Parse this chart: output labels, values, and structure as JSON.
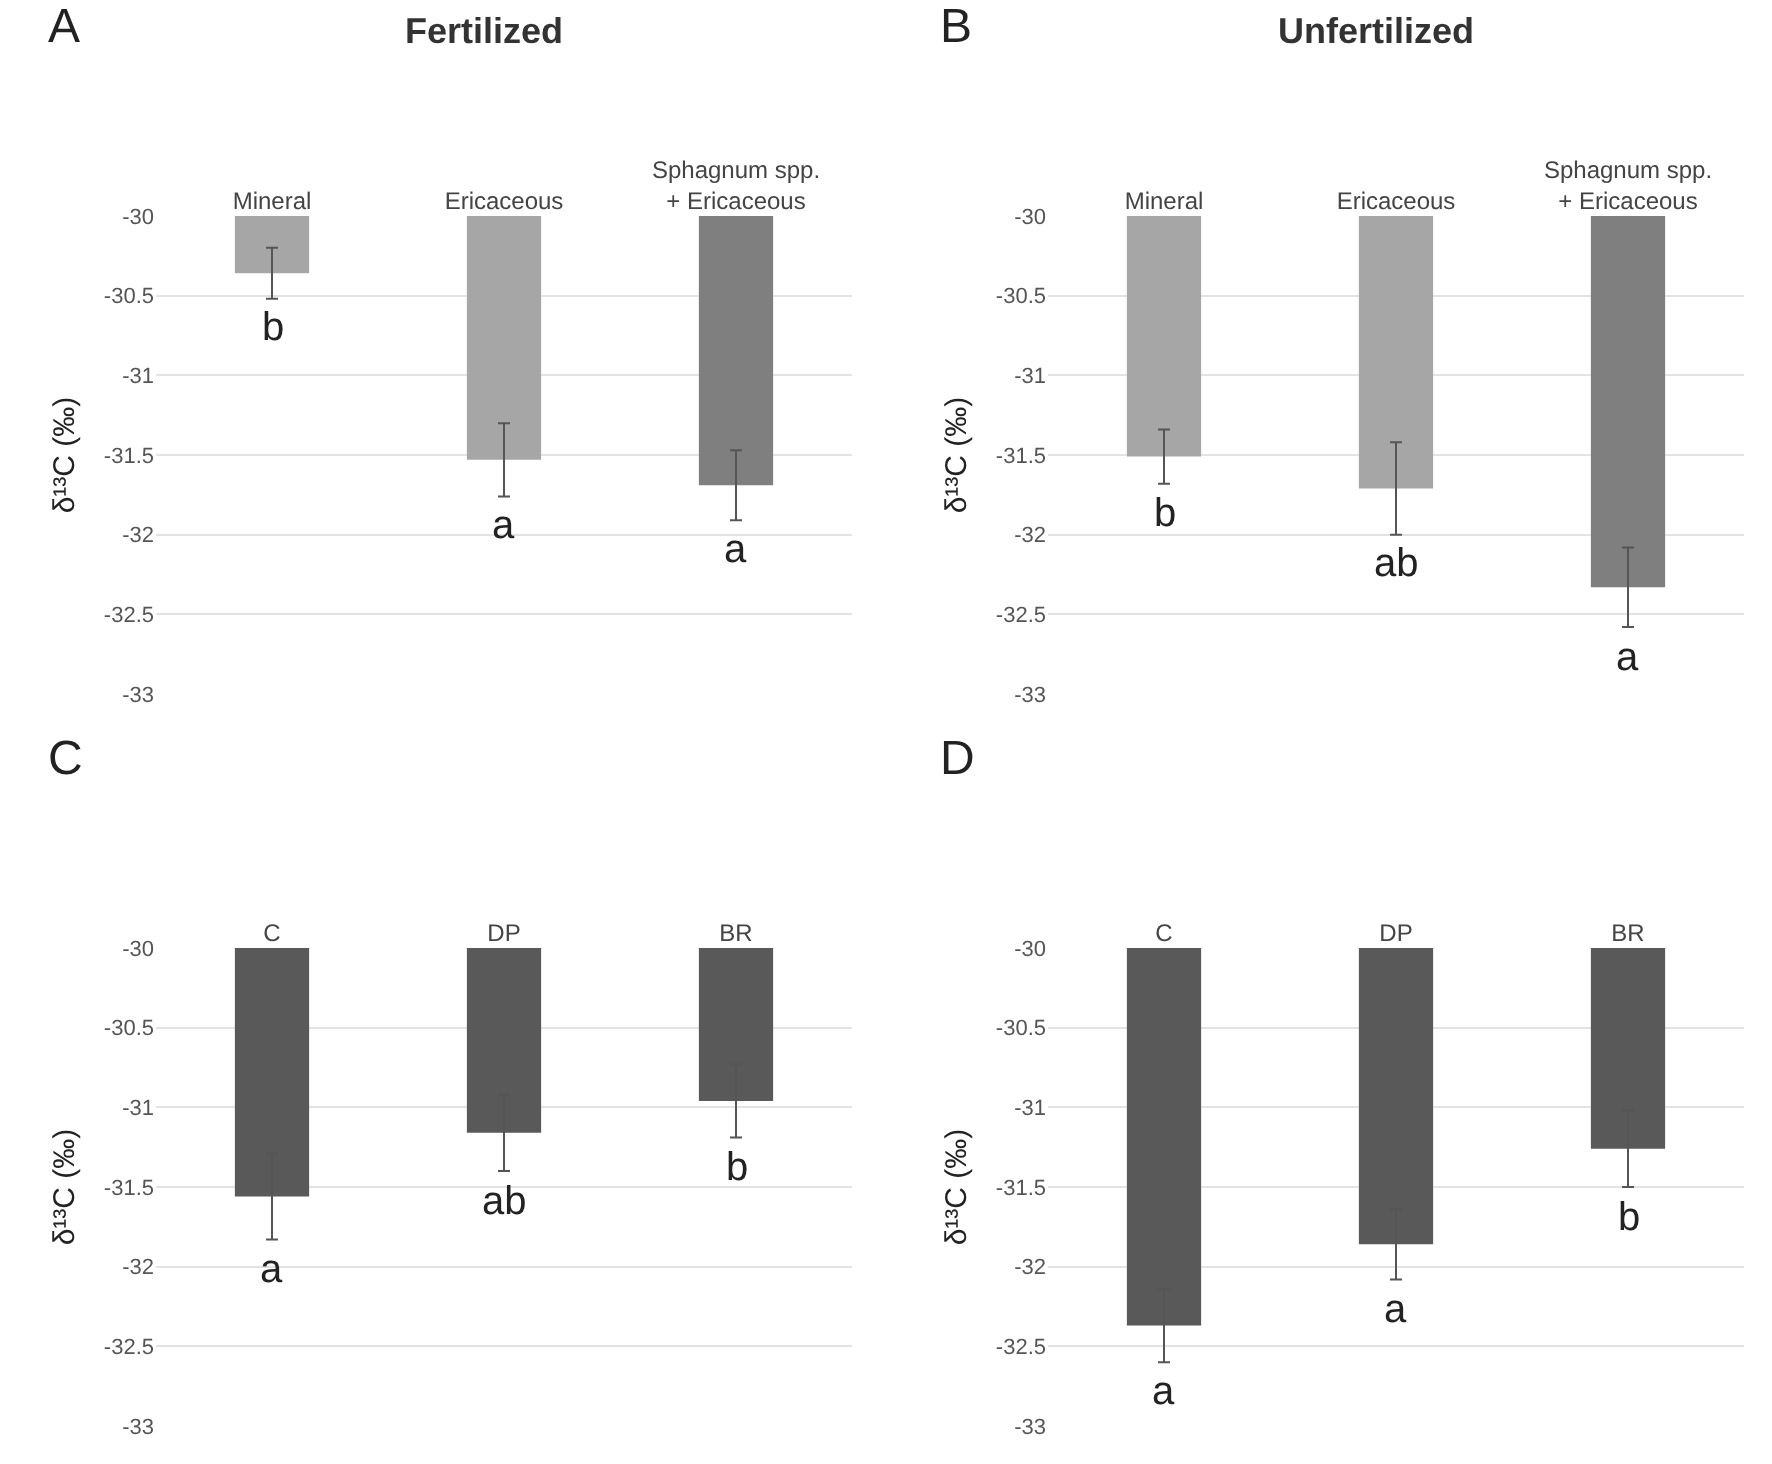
{
  "chart_data": [
    {
      "type": "bar",
      "title": "Fertilized",
      "ylabel": "δ¹³C (‰)",
      "categories": [
        "Mineral",
        "Ericaceous",
        "Sphagnum spp.\n+ Ericaceous"
      ],
      "base": [
        -30,
        -30,
        -30
      ],
      "values": [
        -0.36,
        -1.53,
        -1.69
      ],
      "colors": [
        "#a6a6a6",
        "#a6a6a6",
        "#7f7f7f"
      ],
      "errors": [
        0.16,
        0.23,
        0.22
      ],
      "ylim": [
        -33,
        -30
      ],
      "yticks": [
        -33,
        -32.5,
        -32,
        -31.5,
        -31,
        -30.5,
        -30
      ],
      "grid": "y",
      "annotations": [
        "A",
        "b",
        "a",
        "a"
      ]
    },
    {
      "type": "bar",
      "title": "Unfertilized",
      "ylabel": "δ¹³C (‰)",
      "categories": [
        "Mineral",
        "Ericaceous",
        "Sphagnum spp.\n+ Ericaceous"
      ],
      "base": [
        -30,
        -30,
        -30
      ],
      "values": [
        -1.51,
        -1.71,
        -2.33
      ],
      "colors": [
        "#a6a6a6",
        "#a6a6a6",
        "#7f7f7f"
      ],
      "errors": [
        0.17,
        0.29,
        0.25
      ],
      "ylim": [
        -33,
        -30
      ],
      "yticks": [
        -33,
        -32.5,
        -32,
        -31.5,
        -31,
        -30.5,
        -30
      ],
      "grid": "y",
      "annotations": [
        "B",
        "b",
        "ab",
        "a"
      ]
    },
    {
      "type": "bar",
      "ylabel": "δ¹³C (‰)",
      "categories": [
        "C",
        "DP",
        "BR"
      ],
      "base": [
        -30,
        -30,
        -30
      ],
      "values": [
        -1.56,
        -1.16,
        -0.96
      ],
      "colors": [
        "#595959",
        "#595959",
        "#595959"
      ],
      "errors": [
        0.27,
        0.24,
        0.23
      ],
      "ylim": [
        -33,
        -30
      ],
      "yticks": [
        -33,
        -32.5,
        -32,
        -31.5,
        -31,
        -30.5,
        -30
      ],
      "grid": "y",
      "annotations": [
        "C",
        "a",
        "ab",
        "b"
      ]
    },
    {
      "type": "bar",
      "ylabel": "δ¹³C (‰)",
      "categories": [
        "C",
        "DP",
        "BR"
      ],
      "base": [
        -30,
        -30,
        -30
      ],
      "values": [
        -2.37,
        -1.86,
        -1.26
      ],
      "colors": [
        "#595959",
        "#595959",
        "#595959"
      ],
      "errors": [
        0.23,
        0.22,
        0.24
      ],
      "ylim": [
        -33,
        -30
      ],
      "yticks": [
        -33,
        -32.5,
        -32,
        -31.5,
        -31,
        -30.5,
        -30
      ],
      "grid": "y",
      "annotations": [
        "D",
        "a",
        "a",
        "b"
      ]
    }
  ]
}
